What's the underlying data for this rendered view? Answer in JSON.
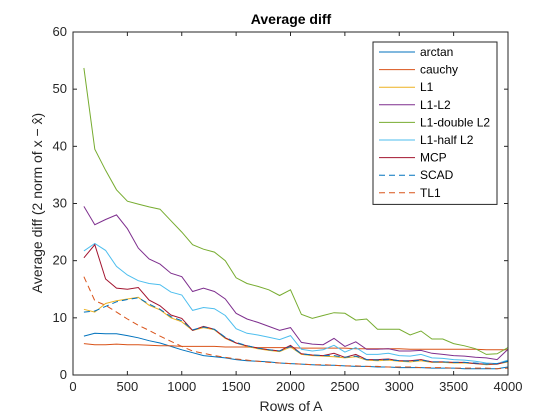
{
  "chart_data": {
    "type": "line",
    "title": "Average diff",
    "xlabel": "Rows of A",
    "ylabel": "Average diff (2 norm of x − x̂)",
    "xlim": [
      0,
      4000
    ],
    "ylim": [
      0,
      60
    ],
    "xticks": [
      "0",
      "500",
      "1000",
      "1500",
      "2000",
      "2500",
      "3000",
      "3500",
      "4000"
    ],
    "yticks": [
      "0",
      "10",
      "20",
      "30",
      "40",
      "50",
      "60"
    ],
    "x": [
      100,
      200,
      300,
      400,
      500,
      600,
      700,
      800,
      900,
      1000,
      1100,
      1200,
      1300,
      1400,
      1500,
      1600,
      1700,
      1800,
      1900,
      2000,
      2100,
      2200,
      2300,
      2400,
      2500,
      2600,
      2700,
      2800,
      2900,
      3000,
      3100,
      3200,
      3300,
      3400,
      3500,
      3600,
      3700,
      3800,
      3900,
      4000
    ],
    "legend_position": "top-right",
    "series": [
      {
        "name": "arctan",
        "color": "#0072BD",
        "dash": "solid",
        "values": [
          6.8,
          7.3,
          7.2,
          7.2,
          6.9,
          6.5,
          6.0,
          5.6,
          5.0,
          4.4,
          3.9,
          3.4,
          3.2,
          3.0,
          2.7,
          2.5,
          2.4,
          2.3,
          2.1,
          2.0,
          1.9,
          1.8,
          1.7,
          1.7,
          1.6,
          1.5,
          1.5,
          1.4,
          1.4,
          1.3,
          1.3,
          1.3,
          1.2,
          1.2,
          1.2,
          1.1,
          1.1,
          1.1,
          1.1,
          1.4
        ]
      },
      {
        "name": "cauchy",
        "color": "#D95319",
        "dash": "solid",
        "values": [
          5.5,
          5.3,
          5.3,
          5.4,
          5.3,
          5.3,
          5.2,
          5.1,
          5.1,
          5.0,
          5.0,
          5.0,
          5.0,
          4.9,
          4.9,
          4.9,
          4.8,
          4.8,
          4.8,
          4.8,
          4.7,
          4.7,
          4.7,
          4.7,
          4.7,
          4.6,
          4.6,
          4.6,
          4.6,
          4.6,
          4.5,
          4.5,
          4.5,
          4.5,
          4.5,
          4.5,
          4.5,
          4.4,
          4.4,
          4.4
        ]
      },
      {
        "name": "L1",
        "color": "#EDB120",
        "dash": "solid",
        "values": [
          11.5,
          11.0,
          12.5,
          13.0,
          13.3,
          13.6,
          12.2,
          11.4,
          10.0,
          9.3,
          7.8,
          8.3,
          7.9,
          6.4,
          5.6,
          5.0,
          4.6,
          4.3,
          4.1,
          4.9,
          3.6,
          3.4,
          3.3,
          3.2,
          3.0,
          3.2,
          2.6,
          2.5,
          2.6,
          2.4,
          2.3,
          2.5,
          2.2,
          2.2,
          2.1,
          2.1,
          2.0,
          1.8,
          1.9,
          2.3
        ]
      },
      {
        "name": "L1-L2",
        "color": "#7E2F8E",
        "dash": "solid",
        "values": [
          29.5,
          26.3,
          27.2,
          28.0,
          25.6,
          22.2,
          20.3,
          19.4,
          17.8,
          17.2,
          14.6,
          15.2,
          14.6,
          13.3,
          10.8,
          9.8,
          9.2,
          8.5,
          7.8,
          8.3,
          5.7,
          5.4,
          5.3,
          6.4,
          5.0,
          5.8,
          4.5,
          4.5,
          4.6,
          4.2,
          4.2,
          4.3,
          3.8,
          3.6,
          3.4,
          3.3,
          3.1,
          3.0,
          2.7,
          4.5
        ]
      },
      {
        "name": "L1-double L2",
        "color": "#77AC30",
        "dash": "solid",
        "values": [
          53.7,
          39.5,
          35.8,
          32.4,
          30.4,
          29.9,
          29.4,
          29.0,
          27.0,
          25.0,
          22.8,
          22.0,
          21.5,
          20.0,
          17.0,
          16.0,
          15.5,
          14.9,
          13.9,
          14.9,
          10.6,
          9.9,
          10.4,
          10.9,
          10.8,
          9.6,
          9.8,
          8.0,
          8.0,
          8.0,
          7.0,
          7.7,
          6.3,
          6.3,
          5.5,
          5.1,
          4.6,
          3.6,
          3.7,
          4.8
        ]
      },
      {
        "name": "L1-half L2",
        "color": "#4DBEEE",
        "dash": "solid",
        "values": [
          21.7,
          23.0,
          21.8,
          19.0,
          17.5,
          16.5,
          16.0,
          15.8,
          14.5,
          14.0,
          11.3,
          11.8,
          11.6,
          10.4,
          8.1,
          7.3,
          7.0,
          6.6,
          6.2,
          6.9,
          4.5,
          4.2,
          4.4,
          5.2,
          4.0,
          4.8,
          3.6,
          3.6,
          3.8,
          3.4,
          3.3,
          3.6,
          3.0,
          2.9,
          2.7,
          2.6,
          2.4,
          2.1,
          2.0,
          2.6
        ]
      },
      {
        "name": "MCP",
        "color": "#A2142F",
        "dash": "solid",
        "values": [
          20.5,
          22.8,
          16.8,
          15.2,
          15.0,
          15.3,
          13.1,
          12.1,
          10.5,
          9.9,
          7.8,
          8.5,
          8.0,
          6.5,
          5.6,
          5.1,
          4.7,
          4.4,
          4.2,
          5.2,
          3.7,
          3.5,
          3.4,
          3.8,
          3.1,
          3.6,
          2.7,
          2.7,
          2.8,
          2.5,
          2.5,
          2.7,
          2.3,
          2.3,
          2.2,
          2.2,
          2.0,
          1.9,
          1.9,
          2.4
        ]
      },
      {
        "name": "SCAD",
        "color": "#0072BD",
        "dash": "dashed",
        "values": [
          11.0,
          11.2,
          12.0,
          12.8,
          13.2,
          13.5,
          12.4,
          11.5,
          10.2,
          9.5,
          7.9,
          8.4,
          8.0,
          6.6,
          5.7,
          5.1,
          4.7,
          4.4,
          4.2,
          5.0,
          3.7,
          3.5,
          3.4,
          3.4,
          3.1,
          3.3,
          2.7,
          2.6,
          2.7,
          2.5,
          2.4,
          2.6,
          2.3,
          2.3,
          2.2,
          2.2,
          2.1,
          1.9,
          2.0,
          2.4
        ]
      },
      {
        "name": "TL1",
        "color": "#D95319",
        "dash": "dashed",
        "values": [
          17.2,
          13.0,
          12.2,
          11.0,
          9.8,
          8.7,
          7.8,
          6.8,
          5.9,
          5.0,
          4.2,
          3.8,
          3.4,
          3.1,
          2.8,
          2.6,
          2.4,
          2.2,
          2.1,
          2.0,
          1.9,
          1.8,
          1.8,
          1.7,
          1.6,
          1.6,
          1.5,
          1.5,
          1.4,
          1.4,
          1.4,
          1.3,
          1.3,
          1.3,
          1.2,
          1.2,
          1.2,
          1.2,
          1.1,
          1.2
        ]
      }
    ]
  }
}
